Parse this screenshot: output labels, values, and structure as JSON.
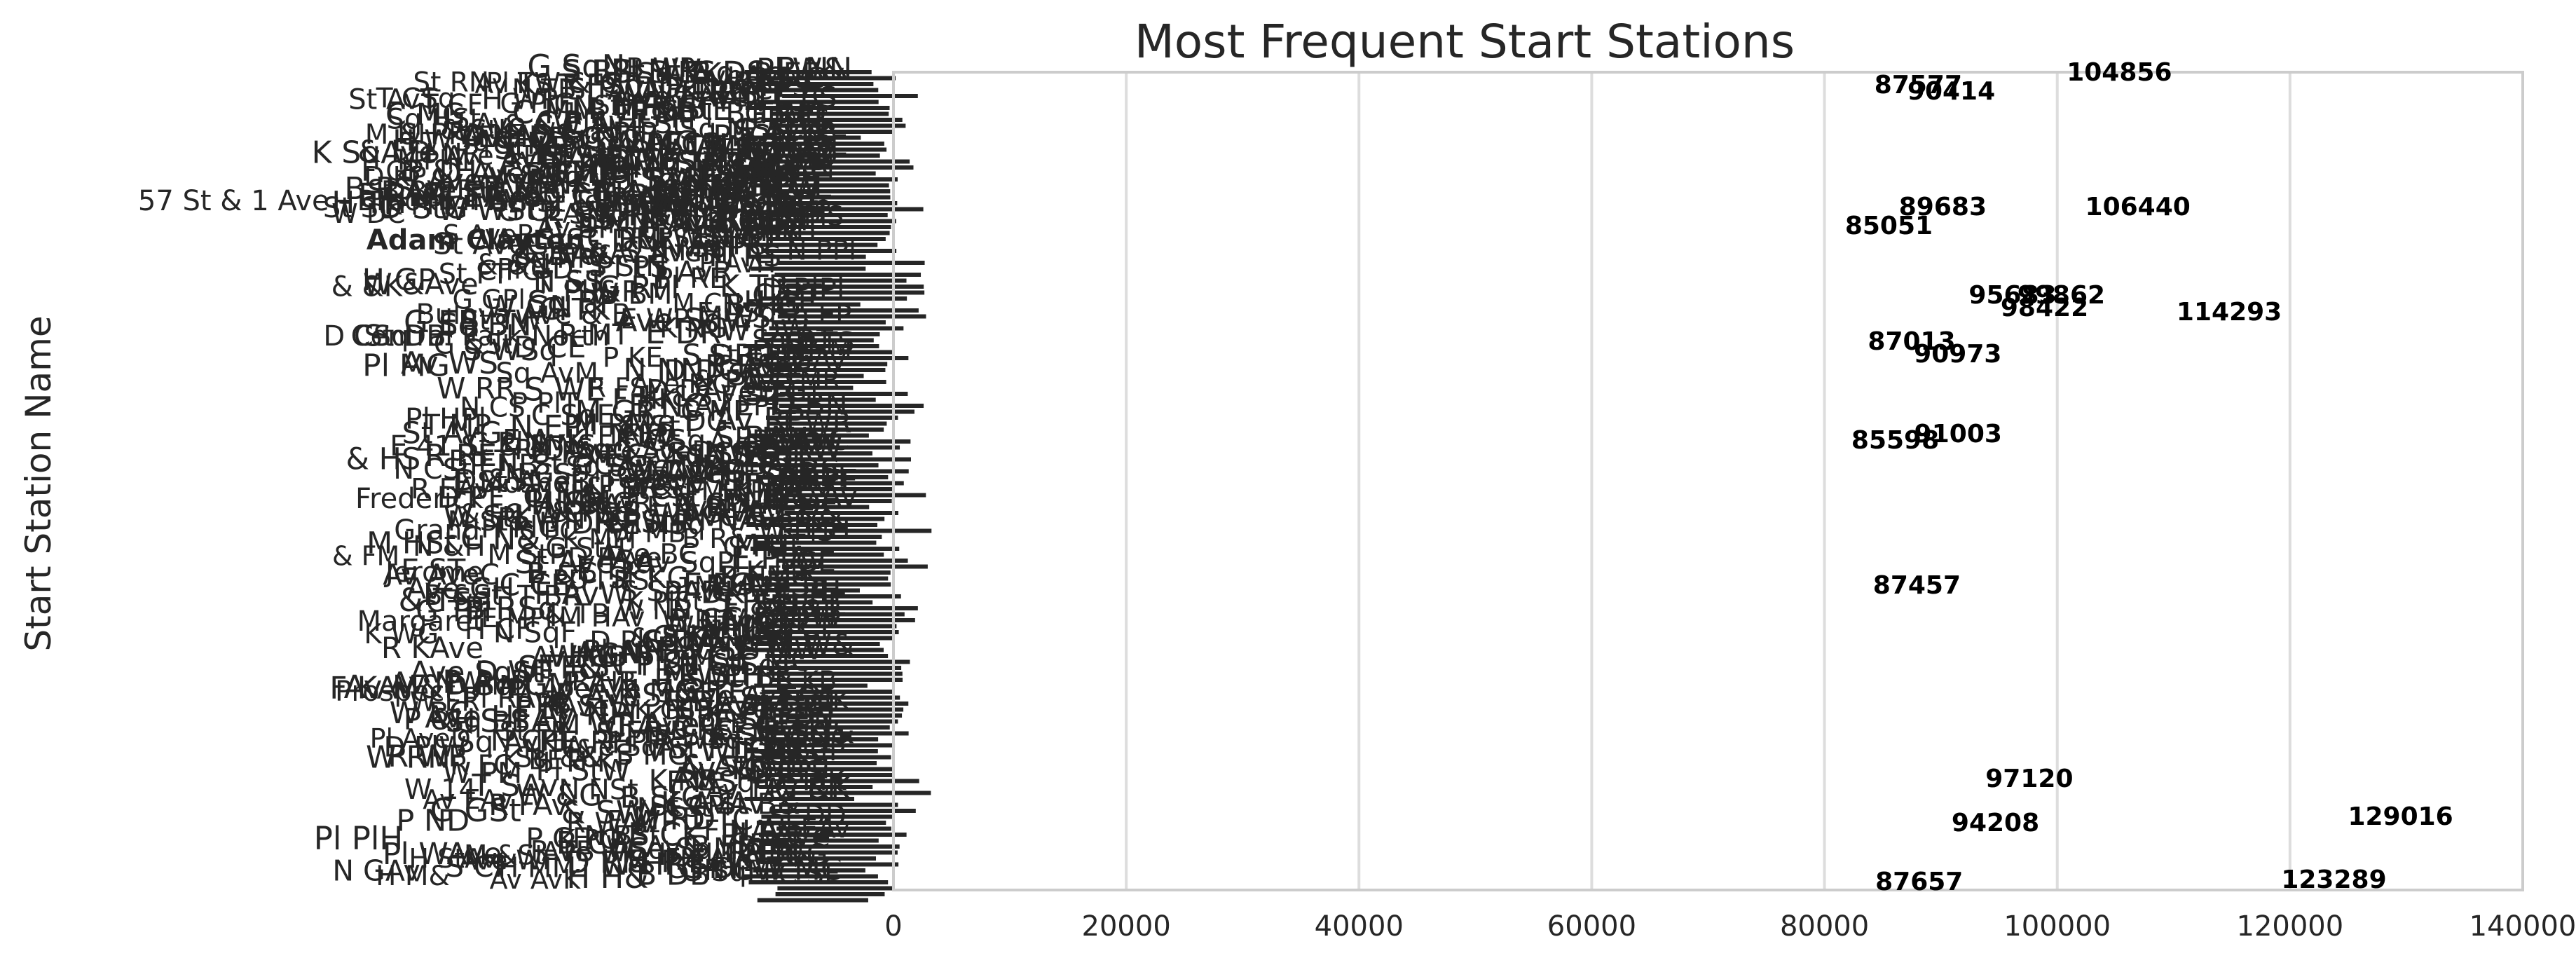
{
  "chart_data": {
    "type": "bar",
    "orientation": "horizontal",
    "title": "Most Frequent Start Stations",
    "xlabel": "",
    "ylabel": "Start Station Name",
    "xlim": [
      0,
      140000
    ],
    "x_ticks": [
      0,
      20000,
      40000,
      60000,
      80000,
      100000,
      120000,
      140000
    ],
    "grid": "vertical",
    "legend": "none",
    "bar_color": "#ffffff",
    "visible_category_labels": [
      "11 Av",
      "21 St",
      "3 Ave & E 174 St",
      "57 St & 1 Ave - Brooklyn Army Terminal",
      "58 St & 2 Ave",
      "Adam Clayton",
      "Bulova Ave & B",
      "Central Park North",
      "E 41 St & M",
      "E Mosholu",
      "Frederick",
      "Grand",
      "Jerome",
      "Margaret",
      "Prospect",
      "W 14"
    ],
    "data_labels": [
      {
        "value": 104856,
        "row": 0.0
      },
      {
        "value": 87577,
        "row": 0.3
      },
      {
        "value": 90414,
        "row": 0.45
      },
      {
        "value": 106440,
        "row": 3.2
      },
      {
        "value": 89683,
        "row": 3.2
      },
      {
        "value": 85051,
        "row": 3.65
      },
      {
        "value": 95683,
        "row": 5.3
      },
      {
        "value": 99862,
        "row": 5.3
      },
      {
        "value": 98422,
        "row": 5.6
      },
      {
        "value": 114293,
        "row": 5.7
      },
      {
        "value": 87013,
        "row": 6.4
      },
      {
        "value": 90973,
        "row": 6.7
      },
      {
        "value": 85598,
        "row": 8.75
      },
      {
        "value": 91003,
        "row": 8.6
      },
      {
        "value": 87457,
        "row": 12.2
      },
      {
        "value": 97120,
        "row": 16.8
      },
      {
        "value": 94208,
        "row": 17.85
      },
      {
        "value": 129016,
        "row": 17.7
      },
      {
        "value": 87657,
        "row": 19.25
      },
      {
        "value": 123289,
        "row": 19.2
      }
    ]
  }
}
